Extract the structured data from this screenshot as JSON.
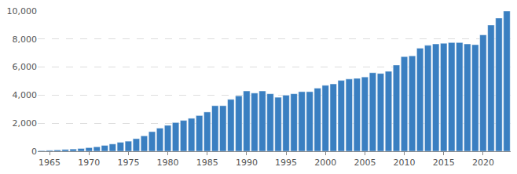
{
  "chart_data": {
    "type": "bar",
    "x": [
      1964,
      1965,
      1966,
      1967,
      1968,
      1969,
      1970,
      1971,
      1972,
      1973,
      1974,
      1975,
      1976,
      1977,
      1978,
      1979,
      1980,
      1981,
      1982,
      1983,
      1984,
      1985,
      1986,
      1987,
      1988,
      1989,
      1990,
      1991,
      1992,
      1993,
      1994,
      1995,
      1996,
      1997,
      1998,
      1999,
      2000,
      2001,
      2002,
      2003,
      2004,
      2005,
      2006,
      2007,
      2008,
      2009,
      2010,
      2011,
      2012,
      2013,
      2014,
      2015,
      2016,
      2017,
      2018,
      2019,
      2020,
      2021,
      2022,
      2023
    ],
    "values": [
      50,
      70,
      100,
      130,
      160,
      200,
      260,
      320,
      420,
      520,
      640,
      720,
      900,
      1100,
      1400,
      1650,
      1850,
      2050,
      2200,
      2350,
      2550,
      2800,
      3250,
      3250,
      3700,
      3950,
      4300,
      4150,
      4300,
      4100,
      3850,
      4000,
      4100,
      4250,
      4250,
      4500,
      4700,
      4800,
      5050,
      5150,
      5200,
      5300,
      5600,
      5550,
      5700,
      6150,
      6750,
      6800,
      7350,
      7550,
      7650,
      7700,
      7750,
      7750,
      7650,
      7600,
      8300,
      9000,
      9500,
      10000
    ],
    "color": "#3a7fc1",
    "xlim": [
      1963.5,
      2023.5
    ],
    "xticks": [
      1965,
      1970,
      1975,
      1980,
      1985,
      1990,
      1995,
      2000,
      2005,
      2010,
      2015,
      2020
    ],
    "ylim": [
      0,
      10000
    ],
    "yticks": [
      0,
      {
        "value": 2000,
        "label": "2,000"
      },
      {
        "value": 4000,
        "label": "4,000"
      },
      {
        "value": 6000,
        "label": "6,000"
      },
      {
        "value": 8000,
        "label": "8,000"
      },
      {
        "value": 10000,
        "label": "10,000"
      }
    ],
    "grid": true
  }
}
